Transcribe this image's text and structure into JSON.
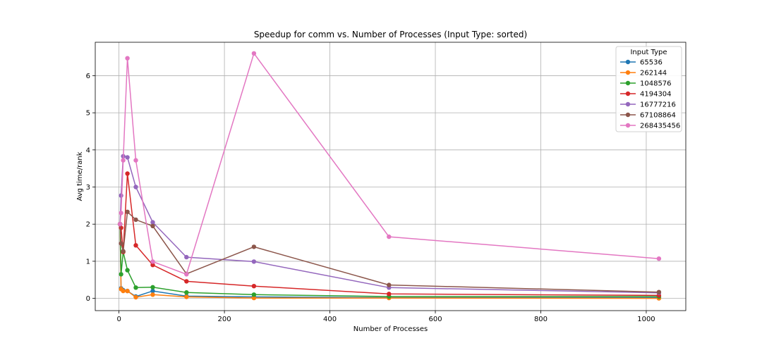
{
  "chart_data": {
    "type": "line",
    "title": "Speedup for comm vs. Number of Processes (Input Type: sorted)",
    "xlabel": "Number of Processes",
    "ylabel": "Avg time/rank",
    "xlim": [
      -45,
      1075
    ],
    "ylim": [
      -0.33,
      6.9
    ],
    "xticks": [
      0,
      200,
      400,
      600,
      800,
      1000
    ],
    "yticks": [
      0,
      1,
      2,
      3,
      4,
      5,
      6
    ],
    "grid": true,
    "legend": {
      "title": "Input Type",
      "placement": "top-right"
    },
    "x": [
      2,
      4,
      8,
      16,
      32,
      64,
      128,
      256,
      512,
      1024
    ],
    "series": [
      {
        "name": "65536",
        "color": "#1f77b4",
        "values": [
          2.0,
          0.27,
          0.22,
          0.2,
          0.05,
          0.2,
          0.06,
          0.04,
          0.02,
          0.02
        ]
      },
      {
        "name": "262144",
        "color": "#ff7f0e",
        "values": [
          2.0,
          0.25,
          0.2,
          0.2,
          0.03,
          0.1,
          0.04,
          0.01,
          0.01,
          0.0
        ]
      },
      {
        "name": "1048576",
        "color": "#2ca02c",
        "values": [
          2.0,
          0.65,
          1.25,
          0.76,
          0.29,
          0.3,
          0.16,
          0.1,
          0.05,
          0.05
        ]
      },
      {
        "name": "4194304",
        "color": "#d62728",
        "values": [
          2.0,
          1.9,
          1.25,
          3.36,
          1.43,
          0.9,
          0.46,
          0.33,
          0.12,
          0.08
        ]
      },
      {
        "name": "16777216",
        "color": "#9467bd",
        "values": [
          2.0,
          2.77,
          3.83,
          3.8,
          3.0,
          2.05,
          1.11,
          0.99,
          0.29,
          0.15
        ]
      },
      {
        "name": "67108864",
        "color": "#8c564b",
        "values": [
          2.0,
          1.48,
          1.27,
          2.33,
          2.12,
          1.95,
          0.66,
          1.39,
          0.36,
          0.17
        ]
      },
      {
        "name": "268435456",
        "color": "#e377c2",
        "values": [
          2.0,
          2.3,
          3.72,
          6.47,
          3.72,
          0.99,
          0.65,
          6.6,
          1.66,
          1.07
        ]
      }
    ]
  }
}
